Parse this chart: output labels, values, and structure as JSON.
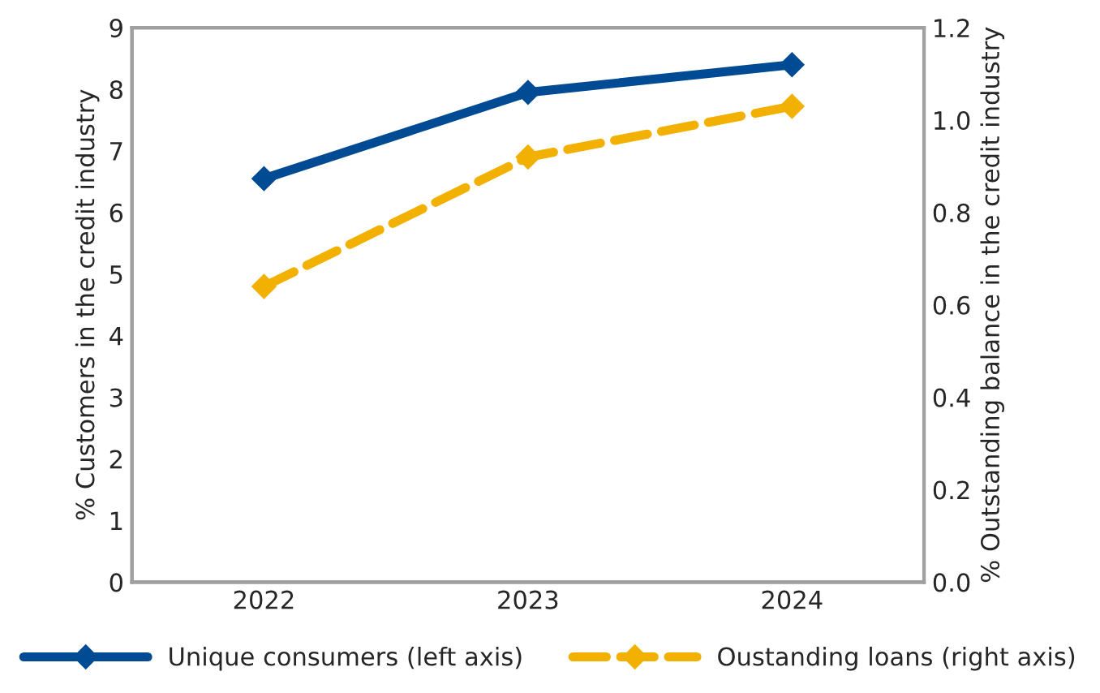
{
  "chart_data": {
    "type": "line",
    "categories": [
      "2022",
      "2023",
      "2024"
    ],
    "ylabel": "% Customers in the credit industry",
    "y2label": "% Outstanding balance in the credit industry",
    "series": [
      {
        "name": "Unique consumers (left axis)",
        "color": "#004b93",
        "values": [
          6.55,
          7.95,
          8.4
        ],
        "line_style": "solid"
      },
      {
        "name": "Oustanding loans (right axis)",
        "color": "#f2b100",
        "values": [
          0.64,
          0.92,
          1.03
        ],
        "axis": "y2",
        "line_style": "dashed"
      }
    ],
    "ylim": [
      0,
      9
    ],
    "yticks": [
      0,
      1,
      2,
      3,
      4,
      5,
      6,
      7,
      8,
      9
    ],
    "y2lim": [
      0,
      1.2
    ],
    "y2ticks": [
      {
        "value": 0,
        "label": "0.0"
      },
      {
        "value": 0.2,
        "label": "0.2"
      },
      {
        "value": 0.4,
        "label": "0.4"
      },
      {
        "value": 0.6,
        "label": "0.6"
      },
      {
        "value": 0.8,
        "label": "0.8"
      },
      {
        "value": 1.0,
        "label": "1.0"
      },
      {
        "value": 1.2,
        "label": "1.2"
      }
    ],
    "marker": "diamond",
    "grid": false,
    "legend": "bottom"
  }
}
